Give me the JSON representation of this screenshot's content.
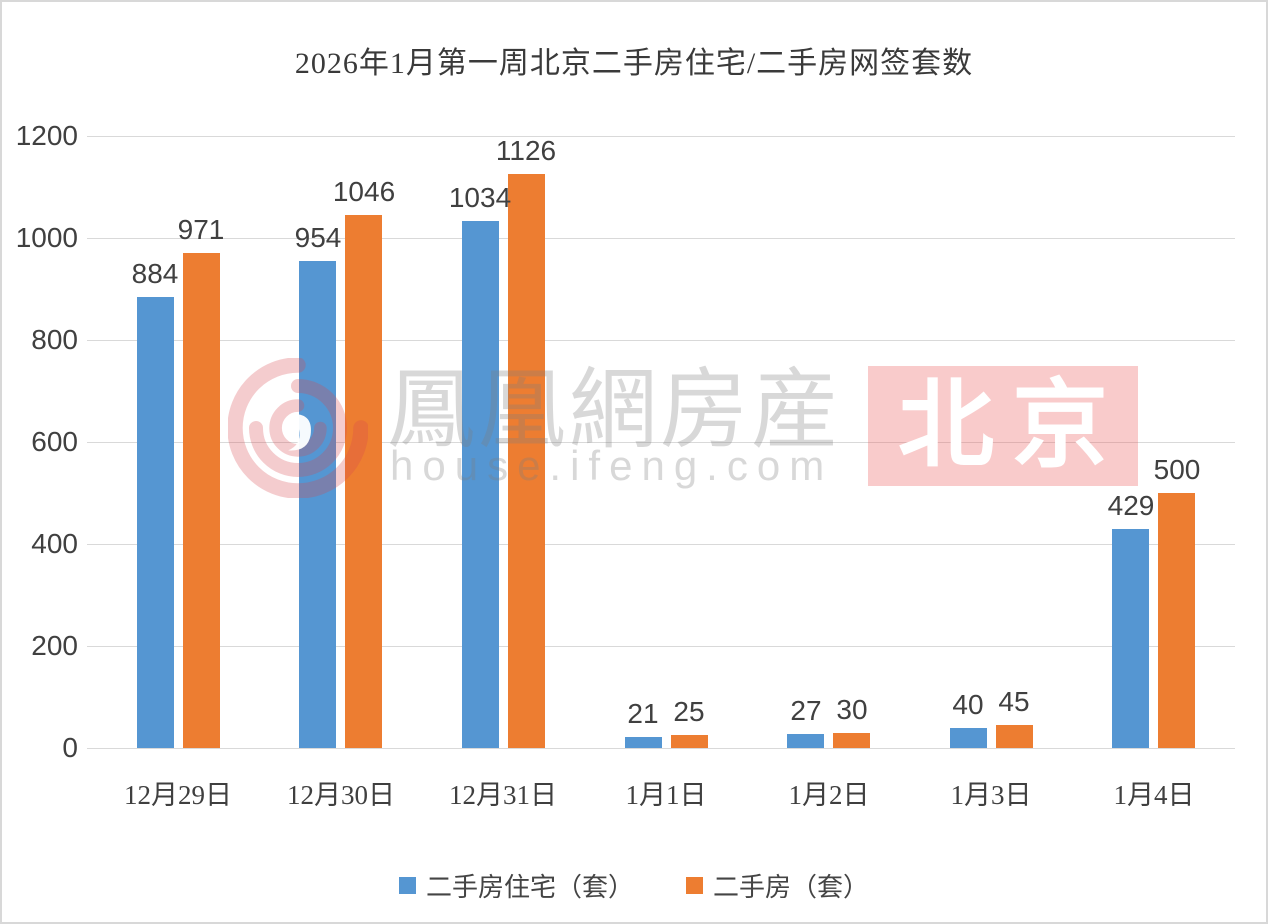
{
  "page": {
    "background": "#ffffff",
    "border_color": "#d8d8d8"
  },
  "colors": {
    "series_blue": "#5596D2",
    "series_orange": "#ED7D31",
    "gridline": "#d9d9d9",
    "axis_text": "#404040",
    "title_text": "#3a3a3a",
    "watermark_box": "rgba(236,98,98,0.33)"
  },
  "watermark": {
    "brand": "鳳凰網房産",
    "url": "house.ifeng.com",
    "city": "北京"
  },
  "chart_data": {
    "type": "bar",
    "title": "2026年1月第一周北京二手房住宅/二手房网签套数",
    "categories": [
      "12月29日",
      "12月30日",
      "12月31日",
      "1月1日",
      "1月2日",
      "1月3日",
      "1月4日"
    ],
    "series": [
      {
        "name": "二手房住宅（套）",
        "color": "#5596D2",
        "values": [
          884,
          954,
          1034,
          21,
          27,
          40,
          429
        ]
      },
      {
        "name": "二手房（套）",
        "color": "#ED7D31",
        "values": [
          971,
          1046,
          1126,
          25,
          30,
          45,
          500
        ]
      }
    ],
    "xlabel": "",
    "ylabel": "",
    "ylim": [
      0,
      1200
    ],
    "yticks": [
      0,
      200,
      400,
      600,
      800,
      1000,
      1200
    ],
    "grid": "horizontal",
    "legend_position": "bottom",
    "data_labels": true
  }
}
